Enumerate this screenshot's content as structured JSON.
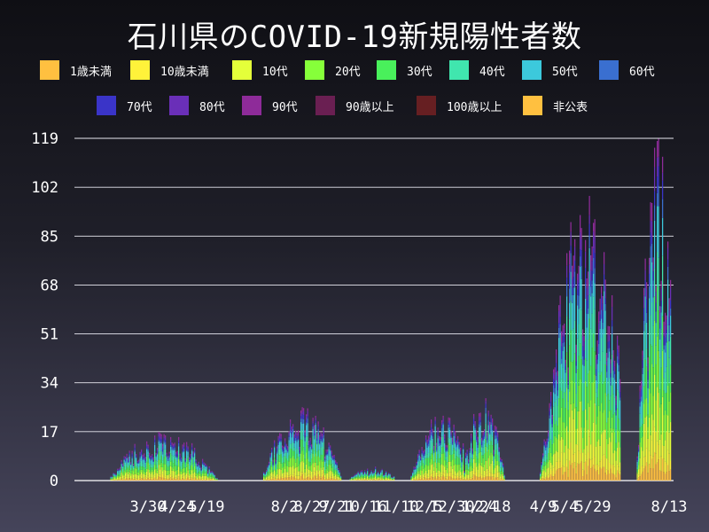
{
  "page": {
    "title": "石川県のCOVID-19新規陽性者数"
  },
  "legend": {
    "row1": [
      {
        "label": "1歳未満",
        "color": "#ffc040"
      },
      {
        "label": "10歳未満",
        "color": "#fff23a"
      },
      {
        "label": "10代",
        "color": "#e4ff3a"
      },
      {
        "label": "20代",
        "color": "#86ff3a"
      },
      {
        "label": "30代",
        "color": "#49f05b"
      },
      {
        "label": "40代",
        "color": "#40e6ae"
      },
      {
        "label": "50代",
        "color": "#3cc9dc"
      },
      {
        "label": "60代",
        "color": "#3a6fd0"
      }
    ],
    "row2": [
      {
        "label": "70代",
        "color": "#3a34c8"
      },
      {
        "label": "80代",
        "color": "#6a2fb8"
      },
      {
        "label": "90代",
        "color": "#8e2b99"
      },
      {
        "label": "90歳以上",
        "color": "#6a1f52"
      },
      {
        "label": "100歳以上",
        "color": "#661f22"
      },
      {
        "label": "非公表",
        "color": "#ffc040"
      }
    ]
  },
  "chart_data": {
    "type": "bar",
    "stacked": true,
    "title": "石川県のCOVID-19新規陽性者数",
    "xlabel": "",
    "ylabel": "",
    "ylim": [
      0,
      119
    ],
    "yticks": [
      0,
      17,
      34,
      51,
      68,
      85,
      102,
      119
    ],
    "x_tick_labels": [
      "3/30",
      "4/24",
      "5/19",
      "8/2",
      "8/27",
      "9/21",
      "10/16",
      "11/10",
      "12/5",
      "12/30",
      "1/24",
      "2/18",
      "4/9",
      "5/4",
      "5/29",
      "8/13"
    ],
    "grid": true,
    "series_names": [
      "1歳未満",
      "10歳未満",
      "10代",
      "20代",
      "30代",
      "40代",
      "50代",
      "60代",
      "70代",
      "80代",
      "90代",
      "90歳以上",
      "100歳以上",
      "非公表"
    ],
    "note_values": "estimated daily totals read from the stacked bars",
    "daily_totals_estimated": [
      {
        "period": "2020-03/04",
        "peak": 18
      },
      {
        "period": "2020-08",
        "peak": 26
      },
      {
        "period": "2020-12 / 2021-01",
        "peak": 24
      },
      {
        "period": "2021-02",
        "peak": 29
      },
      {
        "period": "2021-04/05",
        "peak": 100
      },
      {
        "period": "2021-08",
        "peak": 119
      }
    ]
  }
}
